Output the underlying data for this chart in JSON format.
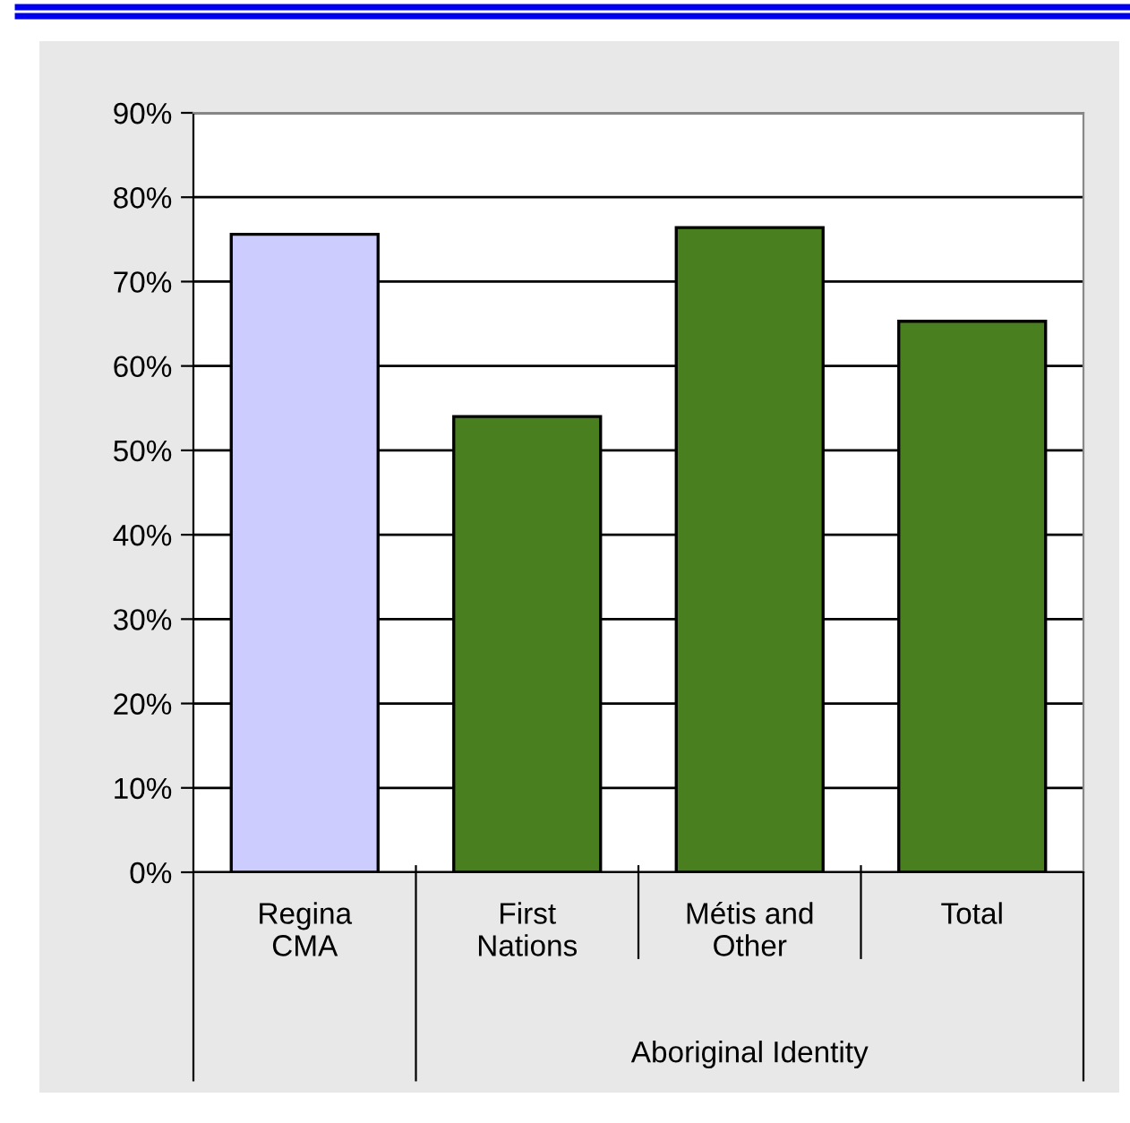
{
  "chart_data": {
    "type": "bar",
    "categories": [
      "Regina\nCMA",
      "First\nNations",
      "Métis and\nOther",
      "Total"
    ],
    "values": [
      75.6,
      54.0,
      76.4,
      65.3
    ],
    "colors": [
      "#ccccff",
      "#4a7f1f",
      "#4a7f1f",
      "#4a7f1f"
    ],
    "ylim": [
      0,
      90
    ],
    "yticks": [
      {
        "value": 0,
        "label": "0%"
      },
      {
        "value": 10,
        "label": "10%"
      },
      {
        "value": 20,
        "label": "20%"
      },
      {
        "value": 30,
        "label": "30%"
      },
      {
        "value": 40,
        "label": "40%"
      },
      {
        "value": 50,
        "label": "50%"
      },
      {
        "value": 60,
        "label": "60%"
      },
      {
        "value": 70,
        "label": "70%"
      },
      {
        "value": 80,
        "label": "80%"
      },
      {
        "value": 90,
        "label": "90%"
      }
    ],
    "grid": "y",
    "legend": false,
    "annotations": [
      "Aboriginal Identity"
    ]
  }
}
